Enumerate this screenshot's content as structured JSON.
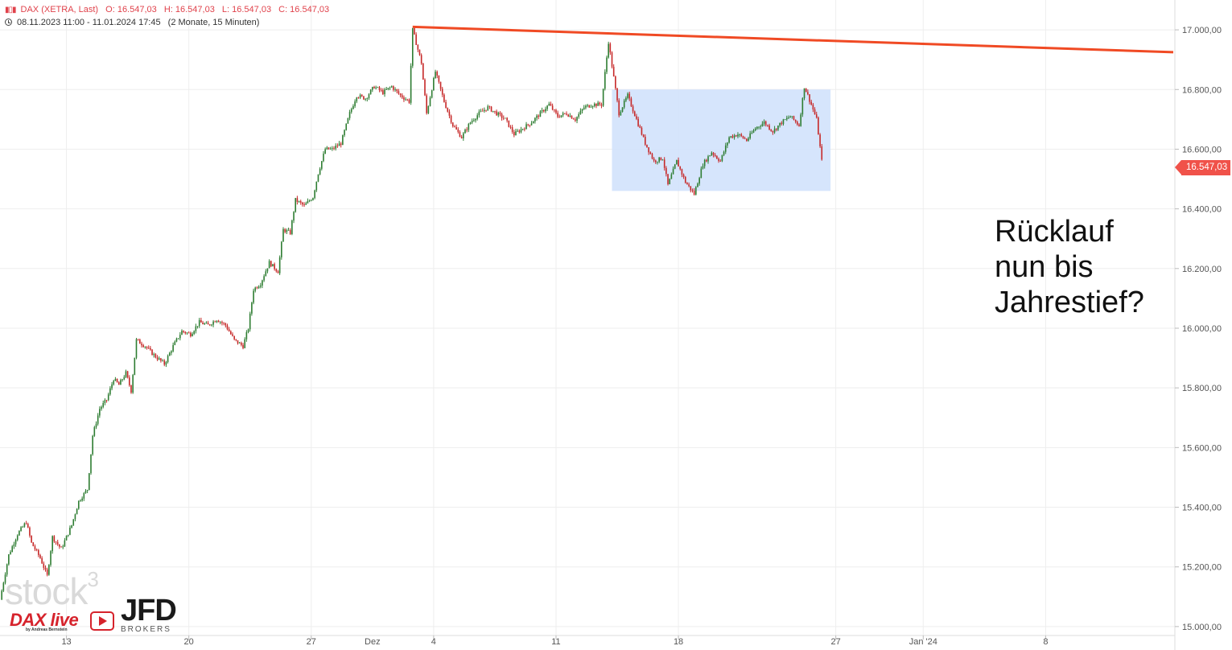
{
  "header": {
    "line1": {
      "symbol": "DAX (XETRA, Last)",
      "open": "O: 16.547,03",
      "high": "H: 16.547,03",
      "low": "L: 16.547,03",
      "close": "C: 16.547,03"
    },
    "line2": {
      "range": "08.11.2023 11:00 - 11.01.2024 17:45",
      "period": "(2 Monate, 15 Minuten)"
    }
  },
  "last_price_label": "16.547,03",
  "annotation_text": "Rücklauf\nnun bis\nJahrestief?",
  "watermark": {
    "stock3": "stock",
    "stock3_sup": "3",
    "dax_live": "DAX live",
    "dax_live_sub": "by Andreas Bernstein",
    "broker": "JFD",
    "broker_sub": "BROKERS"
  },
  "colors": {
    "up": "#2e7d32",
    "down": "#c62828",
    "resistance": "#f04a24",
    "range_box": "#cfe0fb",
    "price_tag": "#f0524a",
    "grid": "#eeeeee"
  },
  "chart_data": {
    "type": "candlestick",
    "instrument": "DAX (XETRA, Last)",
    "y_ticks": [
      "15.000,00",
      "15.200,00",
      "15.400,00",
      "15.600,00",
      "15.800,00",
      "16.000,00",
      "16.200,00",
      "16.400,00",
      "16.600,00",
      "16.800,00",
      "17.000,00"
    ],
    "y_tick_values": [
      15000,
      15200,
      15400,
      15600,
      15800,
      16000,
      16200,
      16400,
      16600,
      16800,
      17000
    ],
    "ylim": [
      14970,
      17100
    ],
    "x_ticks": [
      {
        "label": "13",
        "day": 5
      },
      {
        "label": "20",
        "day": 12
      },
      {
        "label": "27",
        "day": 19
      },
      {
        "label": "Dez",
        "day": 22.5
      },
      {
        "label": "4",
        "day": 26
      },
      {
        "label": "11",
        "day": 33
      },
      {
        "label": "18",
        "day": 40
      },
      {
        "label": "27",
        "day": 49
      },
      {
        "label": "Jan '24",
        "day": 54
      },
      {
        "label": "8",
        "day": 61
      }
    ],
    "xlim": [
      1.2,
      68.3
    ],
    "price_path": [
      [
        1.2,
        15090
      ],
      [
        1.7,
        15240
      ],
      [
        2.2,
        15310
      ],
      [
        2.7,
        15350
      ],
      [
        3.0,
        15280
      ],
      [
        3.5,
        15230
      ],
      [
        3.9,
        15170
      ],
      [
        4.2,
        15300
      ],
      [
        4.7,
        15260
      ],
      [
        5.3,
        15340
      ],
      [
        5.7,
        15420
      ],
      [
        6.2,
        15460
      ],
      [
        6.5,
        15640
      ],
      [
        6.9,
        15730
      ],
      [
        7.3,
        15760
      ],
      [
        7.7,
        15830
      ],
      [
        8.0,
        15810
      ],
      [
        8.4,
        15850
      ],
      [
        8.7,
        15790
      ],
      [
        9.0,
        15960
      ],
      [
        9.5,
        15940
      ],
      [
        10.0,
        15910
      ],
      [
        10.6,
        15880
      ],
      [
        11.1,
        15940
      ],
      [
        11.6,
        15990
      ],
      [
        12.1,
        15980
      ],
      [
        12.6,
        16020
      ],
      [
        13.1,
        16010
      ],
      [
        13.6,
        16030
      ],
      [
        14.1,
        16010
      ],
      [
        14.6,
        15960
      ],
      [
        15.1,
        15940
      ],
      [
        15.4,
        16000
      ],
      [
        15.7,
        16130
      ],
      [
        16.1,
        16150
      ],
      [
        16.6,
        16220
      ],
      [
        17.1,
        16190
      ],
      [
        17.4,
        16330
      ],
      [
        17.8,
        16320
      ],
      [
        18.1,
        16430
      ],
      [
        18.6,
        16410
      ],
      [
        19.1,
        16440
      ],
      [
        19.4,
        16520
      ],
      [
        19.8,
        16600
      ],
      [
        20.2,
        16600
      ],
      [
        20.7,
        16620
      ],
      [
        21.2,
        16720
      ],
      [
        21.6,
        16780
      ],
      [
        22.1,
        16770
      ],
      [
        22.6,
        16810
      ],
      [
        23.1,
        16790
      ],
      [
        23.6,
        16810
      ],
      [
        24.1,
        16780
      ],
      [
        24.6,
        16760
      ],
      [
        24.8,
        17000
      ],
      [
        25.3,
        16890
      ],
      [
        25.6,
        16720
      ],
      [
        26.1,
        16860
      ],
      [
        26.6,
        16760
      ],
      [
        27.1,
        16680
      ],
      [
        27.6,
        16640
      ],
      [
        28.1,
        16690
      ],
      [
        28.6,
        16720
      ],
      [
        29.1,
        16740
      ],
      [
        29.6,
        16720
      ],
      [
        30.1,
        16700
      ],
      [
        30.6,
        16650
      ],
      [
        31.1,
        16670
      ],
      [
        31.6,
        16690
      ],
      [
        32.1,
        16720
      ],
      [
        32.6,
        16750
      ],
      [
        33.1,
        16710
      ],
      [
        33.6,
        16720
      ],
      [
        34.1,
        16700
      ],
      [
        34.6,
        16740
      ],
      [
        35.1,
        16750
      ],
      [
        35.6,
        16750
      ],
      [
        36.0,
        16960
      ],
      [
        36.3,
        16840
      ],
      [
        36.6,
        16720
      ],
      [
        37.1,
        16780
      ],
      [
        37.6,
        16700
      ],
      [
        38.1,
        16620
      ],
      [
        38.6,
        16560
      ],
      [
        39.1,
        16570
      ],
      [
        39.4,
        16480
      ],
      [
        39.9,
        16560
      ],
      [
        40.4,
        16490
      ],
      [
        40.9,
        16450
      ],
      [
        41.4,
        16550
      ],
      [
        41.9,
        16590
      ],
      [
        42.4,
        16560
      ],
      [
        42.9,
        16640
      ],
      [
        43.4,
        16650
      ],
      [
        43.9,
        16630
      ],
      [
        44.4,
        16670
      ],
      [
        44.9,
        16690
      ],
      [
        45.4,
        16660
      ],
      [
        45.9,
        16690
      ],
      [
        46.4,
        16710
      ],
      [
        46.9,
        16680
      ],
      [
        47.2,
        16810
      ],
      [
        47.6,
        16750
      ],
      [
        47.9,
        16700
      ],
      [
        48.2,
        16560
      ]
    ],
    "resistance_line": {
      "start": [
        24.8,
        17010
      ],
      "end": [
        68.3,
        16925
      ]
    },
    "range_box": {
      "x0": 36.2,
      "x1": 48.7,
      "y0": 16460,
      "y1": 16800
    },
    "last_price": 16547.03,
    "annotation": "Rücklauf nun bis Jahrestief?"
  }
}
